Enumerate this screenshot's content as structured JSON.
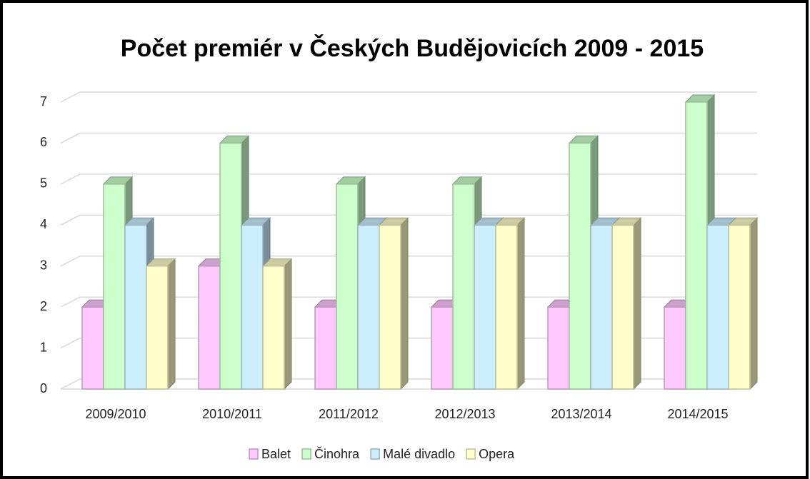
{
  "chart_data": {
    "type": "bar3d",
    "title": "Počet premiér v Českých Budějovicích 2009 - 2015",
    "categories": [
      "2009/2010",
      "2010/2011",
      "2011/2012",
      "2012/2013",
      "2013/2014",
      "2014/2015"
    ],
    "series": [
      {
        "name": "Balet",
        "color": "#ffc8ff",
        "values": [
          2,
          3,
          2,
          2,
          2,
          2
        ]
      },
      {
        "name": "Činohra",
        "color": "#ccffcc",
        "values": [
          5,
          6,
          5,
          5,
          6,
          7
        ]
      },
      {
        "name": "Malé divadlo",
        "color": "#cceeff",
        "values": [
          4,
          4,
          4,
          4,
          4,
          4
        ]
      },
      {
        "name": "Opera",
        "color": "#ffffcc",
        "values": [
          3,
          3,
          4,
          4,
          4,
          4
        ]
      }
    ],
    "ylim": [
      0,
      7
    ],
    "yticks": [
      0,
      1,
      2,
      3,
      4,
      5,
      6,
      7
    ],
    "grid": true,
    "legend": "bottom"
  }
}
